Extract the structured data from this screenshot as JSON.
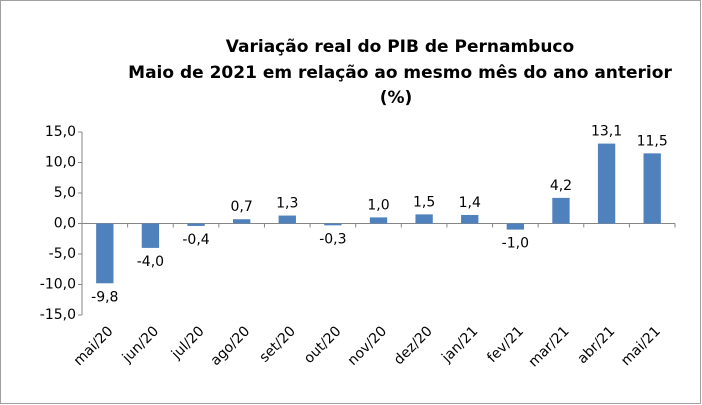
{
  "chart_data": {
    "type": "bar",
    "title": [
      "Variação real do PIB de Pernambuco",
      "Maio de 2021 em relação ao mesmo mês do ano anterior",
      "(%)"
    ],
    "categories": [
      "mai/20",
      "jun/20",
      "jul/20",
      "ago/20",
      "set/20",
      "out/20",
      "nov/20",
      "dez/20",
      "jan/21",
      "fev/21",
      "mar/21",
      "abr/21",
      "mai/21"
    ],
    "values": [
      -9.8,
      -4.0,
      -0.4,
      0.7,
      1.3,
      -0.3,
      1.0,
      1.5,
      1.4,
      -1.0,
      4.2,
      13.1,
      11.5
    ],
    "value_labels": [
      "-9,8",
      "-4,0",
      "-0,4",
      "0,7",
      "1,3",
      "-0,3",
      "1,0",
      "1,5",
      "1,4",
      "-1,0",
      "4,2",
      "13,1",
      "11,5"
    ],
    "color": "#4f81bd",
    "ylim": [
      -15,
      15
    ],
    "yticks": [
      {
        "value": -15,
        "label": "-15,0"
      },
      {
        "value": -10,
        "label": "-10,0"
      },
      {
        "value": -5,
        "label": "-5,0"
      },
      {
        "value": 0,
        "label": "0,0"
      },
      {
        "value": 5,
        "label": "5,0"
      },
      {
        "value": 10,
        "label": "10,0"
      },
      {
        "value": 15,
        "label": "15,0"
      }
    ],
    "grid": false
  }
}
